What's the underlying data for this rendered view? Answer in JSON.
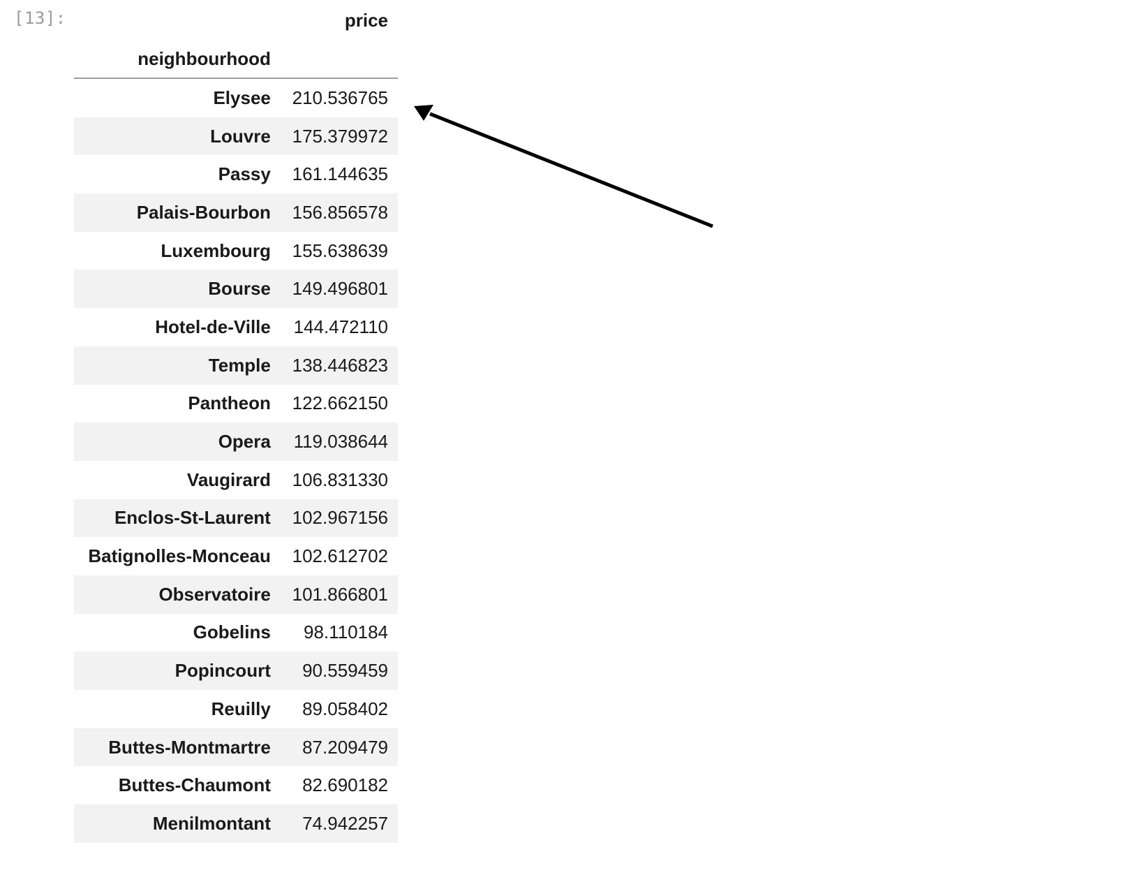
{
  "cell": {
    "prompt": "[13]:"
  },
  "dataframe": {
    "column_header": "price",
    "index_name": "neighbourhood",
    "rows": [
      {
        "name": "Elysee",
        "value": "210.536765"
      },
      {
        "name": "Louvre",
        "value": "175.379972"
      },
      {
        "name": "Passy",
        "value": "161.144635"
      },
      {
        "name": "Palais-Bourbon",
        "value": "156.856578"
      },
      {
        "name": "Luxembourg",
        "value": "155.638639"
      },
      {
        "name": "Bourse",
        "value": "149.496801"
      },
      {
        "name": "Hotel-de-Ville",
        "value": "144.472110"
      },
      {
        "name": "Temple",
        "value": "138.446823"
      },
      {
        "name": "Pantheon",
        "value": "122.662150"
      },
      {
        "name": "Opera",
        "value": "119.038644"
      },
      {
        "name": "Vaugirard",
        "value": "106.831330"
      },
      {
        "name": "Enclos-St-Laurent",
        "value": "102.967156"
      },
      {
        "name": "Batignolles-Monceau",
        "value": "102.612702"
      },
      {
        "name": "Observatoire",
        "value": "101.866801"
      },
      {
        "name": "Gobelins",
        "value": "98.110184"
      },
      {
        "name": "Popincourt",
        "value": "90.559459"
      },
      {
        "name": "Reuilly",
        "value": "89.058402"
      },
      {
        "name": "Buttes-Montmartre",
        "value": "87.209479"
      },
      {
        "name": "Buttes-Chaumont",
        "value": "82.690182"
      },
      {
        "name": "Menilmontant",
        "value": "74.942257"
      }
    ]
  },
  "annotation": {
    "icon": "arrow-icon",
    "color": "#000000"
  }
}
